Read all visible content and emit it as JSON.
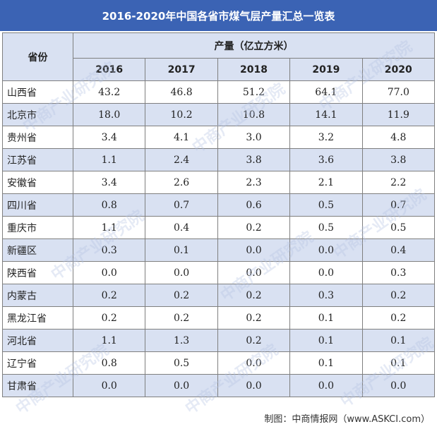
{
  "title": "2016-2020年中国各省市煤气层产量汇总一览表",
  "header": {
    "province_label": "省份",
    "group_label": "产量（亿立方米）",
    "years": [
      "2016",
      "2017",
      "2018",
      "2019",
      "2020"
    ]
  },
  "rows": [
    {
      "province": "山西省",
      "values": [
        "43.2",
        "46.8",
        "51.2",
        "64.1",
        "77.0"
      ]
    },
    {
      "province": "北京市",
      "values": [
        "18.0",
        "10.2",
        "10.8",
        "14.1",
        "11.9"
      ]
    },
    {
      "province": "贵州省",
      "values": [
        "3.4",
        "4.1",
        "3.0",
        "3.2",
        "4.8"
      ]
    },
    {
      "province": "江苏省",
      "values": [
        "1.1",
        "2.4",
        "3.8",
        "3.6",
        "3.8"
      ]
    },
    {
      "province": "安徽省",
      "values": [
        "3.4",
        "2.6",
        "2.3",
        "2.1",
        "2.2"
      ]
    },
    {
      "province": "四川省",
      "values": [
        "0.8",
        "0.7",
        "0.6",
        "0.5",
        "0.7"
      ]
    },
    {
      "province": "重庆市",
      "values": [
        "1.1",
        "0.4",
        "0.2",
        "0.5",
        "0.5"
      ]
    },
    {
      "province": "新疆区",
      "values": [
        "0.3",
        "0.1",
        "0.0",
        "0.0",
        "0.4"
      ]
    },
    {
      "province": "陕西省",
      "values": [
        "0.0",
        "0.0",
        "0.0",
        "0.0",
        "0.3"
      ]
    },
    {
      "province": "内蒙古",
      "values": [
        "0.2",
        "0.2",
        "0.2",
        "0.3",
        "0.2"
      ]
    },
    {
      "province": "黑龙江省",
      "values": [
        "0.2",
        "0.2",
        "0.2",
        "0.1",
        "0.2"
      ]
    },
    {
      "province": "河北省",
      "values": [
        "1.1",
        "1.3",
        "0.2",
        "0.1",
        "0.1"
      ]
    },
    {
      "province": "辽宁省",
      "values": [
        "0.8",
        "0.5",
        "0.0",
        "0.1",
        "0.1"
      ]
    },
    {
      "province": "甘肃省",
      "values": [
        "0.0",
        "0.0",
        "0.0",
        "0.0",
        "0.0"
      ]
    }
  ],
  "footer": "制图：中商情报网（www.ASKCI.com）",
  "watermark": "中商产业研究院",
  "colors": {
    "title_bg": "#3b63b4",
    "row_alt": "#d9e1f2",
    "border": "#7f7f7f"
  }
}
